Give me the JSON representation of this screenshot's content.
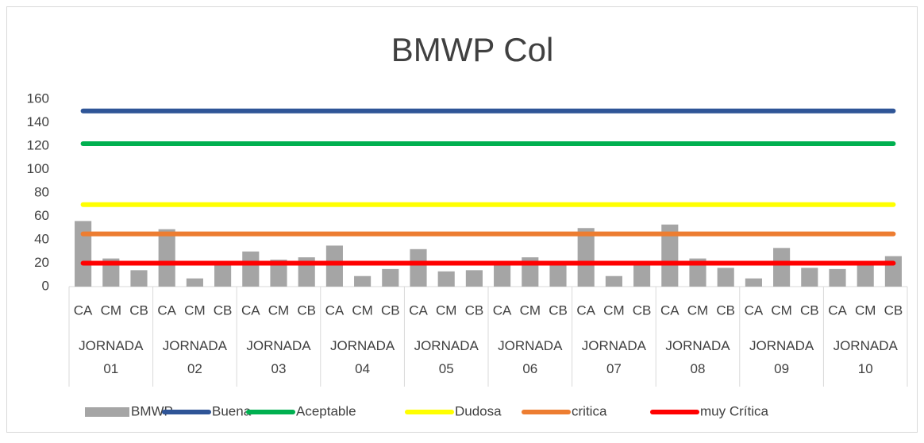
{
  "chart_data": {
    "type": "bar_line",
    "title": "BMWP Col",
    "categories": [
      "CA",
      "CM",
      "CB",
      "CA",
      "CM",
      "CB",
      "CA",
      "CM",
      "CB",
      "CA",
      "CM",
      "CB",
      "CA",
      "CM",
      "CB",
      "CA",
      "CM",
      "CB",
      "CA",
      "CM",
      "CB",
      "CA",
      "CM",
      "CB",
      "CA",
      "CM",
      "CB",
      "CA",
      "CM",
      "CB"
    ],
    "groups": [
      "JORNADA 01",
      "JORNADA 02",
      "JORNADA 03",
      "JORNADA 04",
      "JORNADA 05",
      "JORNADA 06",
      "JORNADA 07",
      "JORNADA 08",
      "JORNADA 09",
      "JORNADA 10"
    ],
    "series": [
      {
        "name": "BMWP",
        "type": "bar",
        "color": "#a5a5a5",
        "values": [
          56,
          24,
          14,
          49,
          7,
          18,
          30,
          23,
          25,
          35,
          9,
          15,
          32,
          13,
          14,
          18,
          25,
          18,
          50,
          9,
          18,
          53,
          24,
          16,
          7,
          33,
          16,
          15,
          18,
          26
        ]
      },
      {
        "name": "Buena",
        "type": "line",
        "color": "#2f5597",
        "values": [
          150,
          150,
          150,
          150,
          150,
          150,
          150,
          150,
          150,
          150,
          150,
          150,
          150,
          150,
          150,
          150,
          150,
          150,
          150,
          150,
          150,
          150,
          150,
          150,
          150,
          150,
          150,
          150,
          150,
          150
        ]
      },
      {
        "name": "Aceptable",
        "type": "line",
        "color": "#00b050",
        "values": [
          122,
          122,
          122,
          122,
          122,
          122,
          122,
          122,
          122,
          122,
          122,
          122,
          122,
          122,
          122,
          122,
          122,
          122,
          122,
          122,
          122,
          122,
          122,
          122,
          122,
          122,
          122,
          122,
          122,
          122
        ]
      },
      {
        "name": "Dudosa",
        "type": "line",
        "color": "#ffff00",
        "values": [
          70,
          70,
          70,
          70,
          70,
          70,
          70,
          70,
          70,
          70,
          70,
          70,
          70,
          70,
          70,
          70,
          70,
          70,
          70,
          70,
          70,
          70,
          70,
          70,
          70,
          70,
          70,
          70,
          70,
          70
        ]
      },
      {
        "name": "critica",
        "type": "line",
        "color": "#ed7d31",
        "values": [
          45,
          45,
          45,
          45,
          45,
          45,
          45,
          45,
          45,
          45,
          45,
          45,
          45,
          45,
          45,
          45,
          45,
          45,
          45,
          45,
          45,
          45,
          45,
          45,
          45,
          45,
          45,
          45,
          45,
          45
        ]
      },
      {
        "name": "muy Crítica",
        "type": "line",
        "color": "#ff0000",
        "values": [
          20,
          20,
          20,
          20,
          20,
          20,
          20,
          20,
          20,
          20,
          20,
          20,
          20,
          20,
          20,
          20,
          20,
          20,
          20,
          20,
          20,
          20,
          20,
          20,
          20,
          20,
          20,
          20,
          20,
          20
        ]
      }
    ],
    "ylim": [
      0,
      160
    ],
    "yticks": [
      0,
      20,
      40,
      60,
      80,
      100,
      120,
      140,
      160
    ],
    "legend": "bottom"
  }
}
